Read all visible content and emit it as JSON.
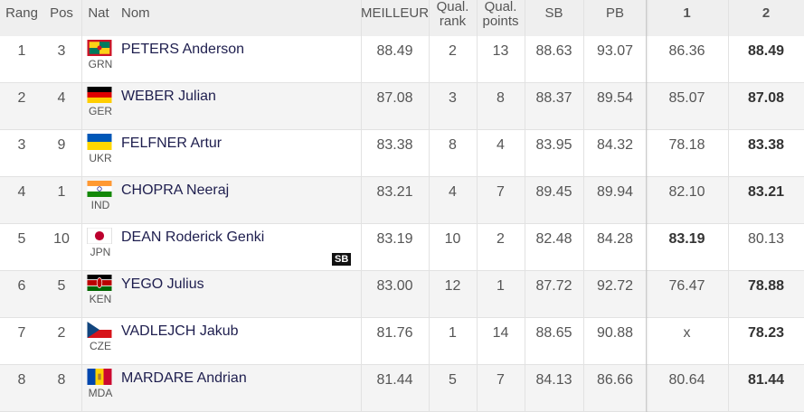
{
  "header": {
    "columns": [
      "Rang",
      "Pos",
      "Nat",
      "Nom",
      "MEILLEUR",
      "Qual. rank",
      "Qual. points",
      "SB",
      "PB",
      "1",
      "2"
    ]
  },
  "rows": [
    {
      "rang": "1",
      "pos": "3",
      "nat": "GRN",
      "nom": "PETERS Anderson",
      "meilleur": "88.49",
      "qual_rank": "2",
      "qual_points": "13",
      "sb": "88.63",
      "pb": "93.07",
      "attempts": [
        "86.36",
        "88.49"
      ],
      "bold_attempt": 1
    },
    {
      "rang": "2",
      "pos": "4",
      "nat": "GER",
      "nom": "WEBER Julian",
      "meilleur": "87.08",
      "qual_rank": "3",
      "qual_points": "8",
      "sb": "88.37",
      "pb": "89.54",
      "attempts": [
        "85.07",
        "87.08"
      ],
      "bold_attempt": 1
    },
    {
      "rang": "3",
      "pos": "9",
      "nat": "UKR",
      "nom": "FELFNER Artur",
      "meilleur": "83.38",
      "qual_rank": "8",
      "qual_points": "4",
      "sb": "83.95",
      "pb": "84.32",
      "attempts": [
        "78.18",
        "83.38"
      ],
      "bold_attempt": 1
    },
    {
      "rang": "4",
      "pos": "1",
      "nat": "IND",
      "nom": "CHOPRA Neeraj",
      "meilleur": "83.21",
      "qual_rank": "4",
      "qual_points": "7",
      "sb": "89.45",
      "pb": "89.94",
      "attempts": [
        "82.10",
        "83.21"
      ],
      "bold_attempt": 1
    },
    {
      "rang": "5",
      "pos": "10",
      "nat": "JPN",
      "nom": "DEAN Roderick Genki",
      "badge": "SB",
      "meilleur": "83.19",
      "qual_rank": "10",
      "qual_points": "2",
      "sb": "82.48",
      "pb": "84.28",
      "attempts": [
        "83.19",
        "80.13"
      ],
      "bold_attempt": 0
    },
    {
      "rang": "6",
      "pos": "5",
      "nat": "KEN",
      "nom": "YEGO Julius",
      "meilleur": "83.00",
      "qual_rank": "12",
      "qual_points": "1",
      "sb": "87.72",
      "pb": "92.72",
      "attempts": [
        "76.47",
        "78.88"
      ],
      "bold_attempt": 1
    },
    {
      "rang": "7",
      "pos": "2",
      "nat": "CZE",
      "nom": "VADLEJCH Jakub",
      "meilleur": "81.76",
      "qual_rank": "1",
      "qual_points": "14",
      "sb": "88.65",
      "pb": "90.88",
      "attempts": [
        "x",
        "78.23"
      ],
      "bold_attempt": 1
    },
    {
      "rang": "8",
      "pos": "8",
      "nat": "MDA",
      "nom": "MARDARE Andrian",
      "meilleur": "81.44",
      "qual_rank": "5",
      "qual_points": "7",
      "sb": "84.13",
      "pb": "86.66",
      "attempts": [
        "80.64",
        "81.44"
      ],
      "bold_attempt": 1
    }
  ]
}
